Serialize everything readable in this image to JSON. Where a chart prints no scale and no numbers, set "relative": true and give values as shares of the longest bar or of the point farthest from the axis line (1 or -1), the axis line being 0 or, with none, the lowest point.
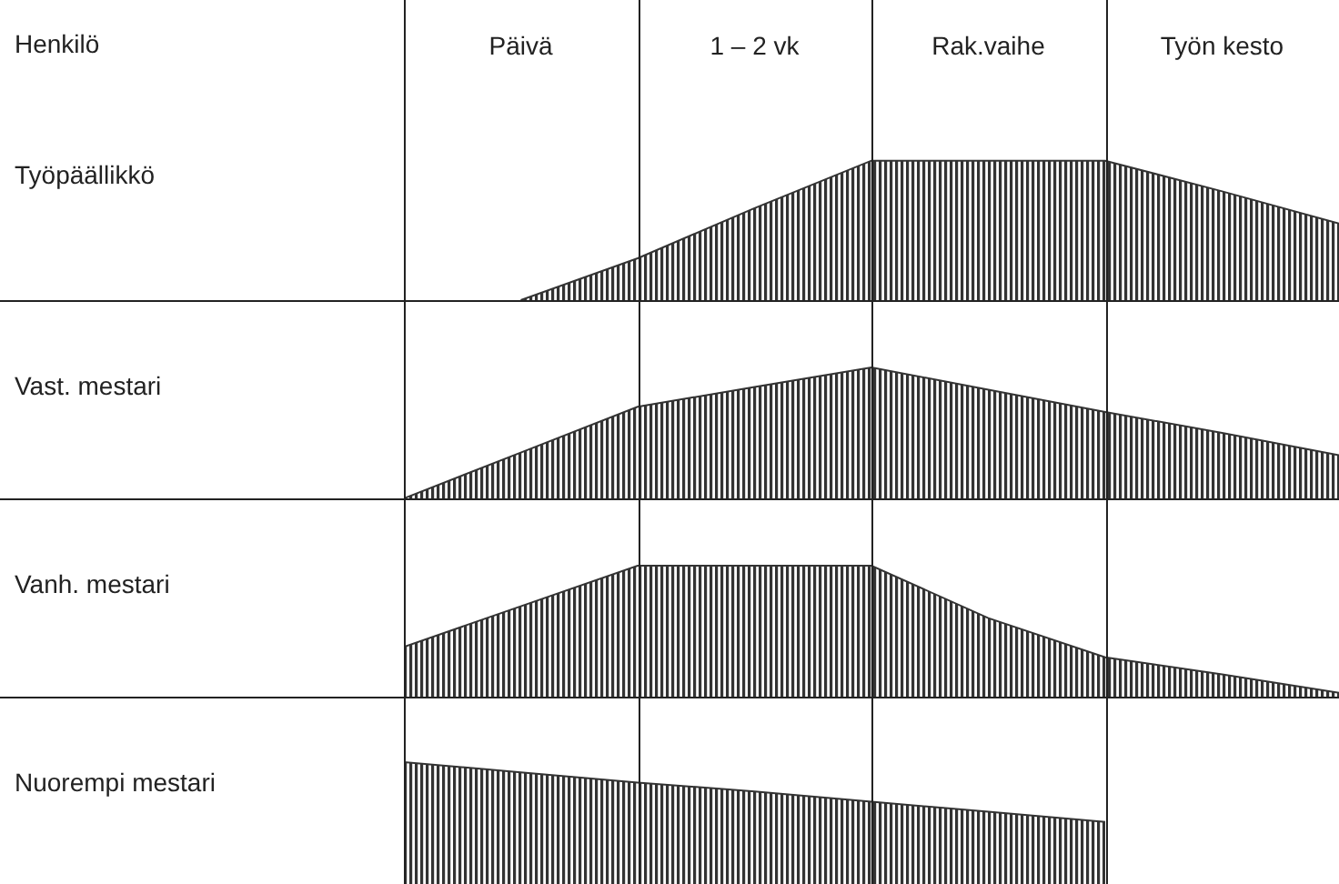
{
  "chart_data": [
    {
      "type": "area",
      "ylabel": "Työpäällikkö",
      "annotations": [
        "Henkilö"
      ],
      "relative": true,
      "color": "#333333",
      "categories": [
        null,
        "Päivä",
        null,
        "1 – 2 vk",
        null,
        "Rak.vaihe",
        null,
        "Työn kesto",
        null
      ],
      "values": [
        null,
        0,
        0.3,
        0.66,
        1,
        1,
        1,
        0.78,
        0.55
      ],
      "tick_labels": "x"
    },
    {
      "type": "area",
      "ylabel": "Vast. mestari",
      "relative": true,
      "color": "#333333",
      "values": [
        0,
        0.35,
        0.7,
        0.85,
        1,
        0.83,
        0.66,
        0.5,
        0.33
      ],
      "tick_labels": false
    },
    {
      "type": "area",
      "ylabel": "Vanh. mestari",
      "relative": true,
      "color": "#333333",
      "values": [
        0.38,
        0.69,
        1,
        1,
        1,
        0.6,
        0.3,
        0.17,
        0.03
      ],
      "tick_labels": false
    },
    {
      "type": "area",
      "ylabel": "Nuorempi mestari",
      "relative": true,
      "color": "#333333",
      "values": [
        1,
        0.92,
        0.84,
        0.77,
        0.69,
        0.61,
        0.53,
        null,
        null
      ],
      "tick_labels": false
    }
  ]
}
